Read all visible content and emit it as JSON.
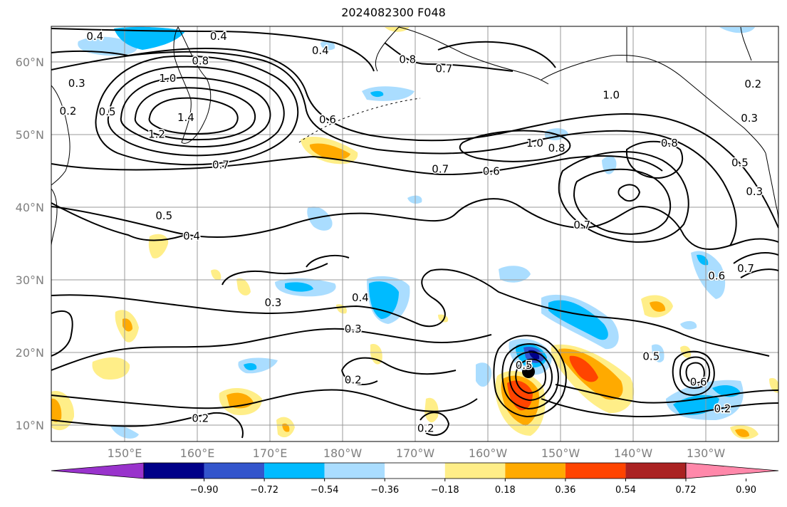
{
  "title": "2024082300 F048",
  "map": {
    "lat_labels": [
      "60°N",
      "50°N",
      "40°N",
      "30°N",
      "20°N",
      "10°N"
    ],
    "lon_labels": [
      "150°E",
      "160°E",
      "170°E",
      "180°W",
      "170°W",
      "160°W",
      "150°W",
      "140°W",
      "130°W"
    ],
    "contour_labels": [
      {
        "text": "0.4",
        "lon": 146,
        "lat": 63.8
      },
      {
        "text": "0.4",
        "lon": 163,
        "lat": 63.8
      },
      {
        "text": "0.4",
        "lon": 177,
        "lat": 61.8
      },
      {
        "text": "0.8",
        "lon": 189,
        "lat": 60.6
      },
      {
        "text": "0.7",
        "lon": 194,
        "lat": 59.3
      },
      {
        "text": "0.8",
        "lon": 160.5,
        "lat": 60.4
      },
      {
        "text": "1.0",
        "lon": 156,
        "lat": 58
      },
      {
        "text": "1.4",
        "lon": 158.5,
        "lat": 52.6
      },
      {
        "text": "1.2",
        "lon": 154.5,
        "lat": 50.3
      },
      {
        "text": "0.3",
        "lon": 143.5,
        "lat": 57.3
      },
      {
        "text": "0.2",
        "lon": 142.3,
        "lat": 53.5
      },
      {
        "text": "0.5",
        "lon": 147.7,
        "lat": 53.4
      },
      {
        "text": "0.6",
        "lon": 178,
        "lat": 52.3
      },
      {
        "text": "0.7",
        "lon": 163.3,
        "lat": 46.1
      },
      {
        "text": "0.5",
        "lon": 155.5,
        "lat": 39.1
      },
      {
        "text": "0.4",
        "lon": 159.3,
        "lat": 36.3
      },
      {
        "text": "1.0",
        "lon": 217,
        "lat": 55.7
      },
      {
        "text": "1.0",
        "lon": 206.5,
        "lat": 49.1
      },
      {
        "text": "0.8",
        "lon": 209.5,
        "lat": 48.4
      },
      {
        "text": "0.7",
        "lon": 193.5,
        "lat": 45.5
      },
      {
        "text": "0.6",
        "lon": 200.5,
        "lat": 45.2
      },
      {
        "text": "0.8",
        "lon": 225,
        "lat": 49.1
      },
      {
        "text": "0.7",
        "lon": 213,
        "lat": 37.8
      },
      {
        "text": "0.2",
        "lon": 236.5,
        "lat": 57.2
      },
      {
        "text": "0.3",
        "lon": 236,
        "lat": 52.5
      },
      {
        "text": "0.5",
        "lon": 234.7,
        "lat": 46.4
      },
      {
        "text": "0.3",
        "lon": 236.7,
        "lat": 42.4
      },
      {
        "text": "0.6",
        "lon": 231.5,
        "lat": 30.8
      },
      {
        "text": "0.7",
        "lon": 235.5,
        "lat": 31.8
      },
      {
        "text": "0.3",
        "lon": 170.5,
        "lat": 27.1
      },
      {
        "text": "0.4",
        "lon": 182.5,
        "lat": 27.8
      },
      {
        "text": "0.3",
        "lon": 181.5,
        "lat": 23.5
      },
      {
        "text": "0.2",
        "lon": 181.5,
        "lat": 16.5
      },
      {
        "text": "0.2",
        "lon": 160.5,
        "lat": 11.2
      },
      {
        "text": "0.2",
        "lon": 191.5,
        "lat": 9.8
      },
      {
        "text": "0.5",
        "lon": 222.5,
        "lat": 19.7
      },
      {
        "text": "0.6",
        "lon": 229,
        "lat": 16.2
      },
      {
        "text": "0.2",
        "lon": 232.3,
        "lat": 12.5
      },
      {
        "text": "0.5",
        "lon": 205,
        "lat": 18.5
      }
    ]
  },
  "colorbar": {
    "ticks": [
      "−0.90",
      "−0.72",
      "−0.54",
      "−0.36",
      "−0.18",
      "0.18",
      "0.36",
      "0.54",
      "0.72",
      "0.90"
    ],
    "colors": [
      "#9933cc",
      "#000088",
      "#3355cc",
      "#00bbff",
      "#aaddff",
      "#ffffff",
      "#ffee88",
      "#ffaa00",
      "#ff4400",
      "#aa2222",
      "#ff88aa"
    ]
  }
}
